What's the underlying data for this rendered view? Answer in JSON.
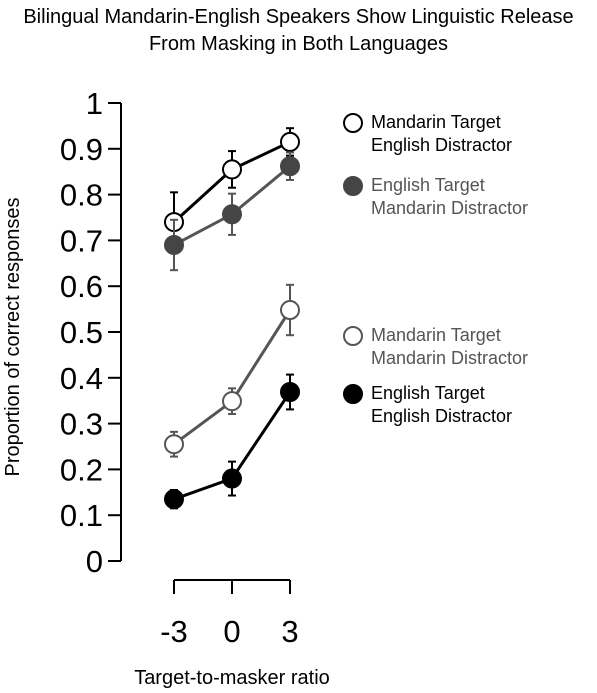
{
  "chart_data": {
    "type": "line",
    "title": "Bilingual Mandarin-English Speakers Show Linguistic Release From Masking in Both Languages",
    "xlabel": "Target-to-masker ratio",
    "ylabel": "Proportion of correct responses",
    "x": [
      -3,
      0,
      3
    ],
    "x_ticks": [
      "-3",
      "0",
      "3"
    ],
    "ylim": [
      0,
      1
    ],
    "y_ticks": [
      "0",
      "0.1",
      "0.2",
      "0.3",
      "0.4",
      "0.5",
      "0.6",
      "0.7",
      "0.8",
      "0.9",
      "1"
    ],
    "grid": false,
    "legend_position": "right",
    "series": [
      {
        "name": "Mandarin Target English Distractor",
        "legend_lines": [
          "Mandarin Target",
          "English Distractor"
        ],
        "values": [
          0.74,
          0.855,
          0.915
        ],
        "error": [
          0.065,
          0.04,
          0.03
        ],
        "line_color": "#000000",
        "marker_fill": "#ffffff",
        "marker_stroke": "#000000",
        "text_color": "#000000"
      },
      {
        "name": "English Target Mandarin Distractor",
        "legend_lines": [
          "English Target",
          "Mandarin Distractor"
        ],
        "values": [
          0.69,
          0.757,
          0.862
        ],
        "error": [
          0.055,
          0.045,
          0.03
        ],
        "line_color": "#555555",
        "marker_fill": "#454545",
        "marker_stroke": "#454545",
        "text_color": "#555555"
      },
      {
        "name": "Mandarin Target Mandarin Distractor",
        "legend_lines": [
          "Mandarin Target",
          "Mandarin Distractor"
        ],
        "values": [
          0.255,
          0.349,
          0.548
        ],
        "error": [
          0.027,
          0.028,
          0.055
        ],
        "line_color": "#555555",
        "marker_fill": "#ffffff",
        "marker_stroke": "#555555",
        "text_color": "#555555"
      },
      {
        "name": "English Target English Distractor",
        "legend_lines": [
          "English Target",
          "English Distractor"
        ],
        "values": [
          0.135,
          0.18,
          0.369
        ],
        "error": [
          0.02,
          0.037,
          0.038
        ],
        "line_color": "#000000",
        "marker_fill": "#000000",
        "marker_stroke": "#000000",
        "text_color": "#000000"
      }
    ]
  }
}
